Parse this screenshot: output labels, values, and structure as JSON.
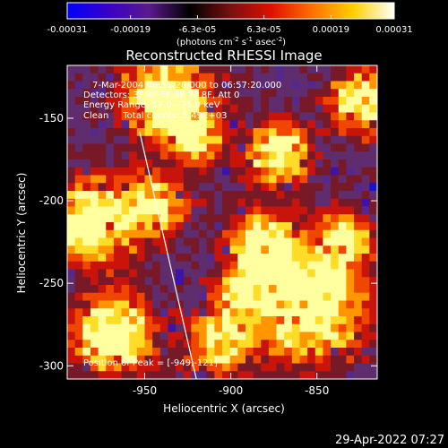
{
  "colorbar": {
    "tick_labels": [
      "-0.00031",
      "-0.00019",
      "-6.3e-05",
      "6.3e-05",
      "0.00019",
      "0.00031"
    ],
    "tick_values": [
      -0.00031,
      -0.00019,
      -6.3e-05,
      6.3e-05,
      0.00019,
      0.00031
    ],
    "range": [
      -0.00031,
      0.00031
    ],
    "units_label": "(photons cm",
    "units_exp1": "-2",
    "units_mid": " s",
    "units_exp2": "-1",
    "units_mid2": " asec",
    "units_exp3": "-2",
    "units_close": ")",
    "colors": [
      "#0000ff",
      "#3a00c8",
      "#5a1a8a",
      "#000000",
      "#7a1010",
      "#e01000",
      "#ff7000",
      "#ffd000",
      "#ffffff"
    ]
  },
  "title": "Reconstructed RHESSI Image",
  "annotations": {
    "time_range": "7-Mar-2004 06:51:20.000 to 06:57:20.000",
    "detectors": "Detectors: 3F 4F 5F 6F 7F 8F, Att 0",
    "energy_range": "Energy Range: 12.0 - 25.0 keV",
    "algorithm": "Clean     Total counts: 5.49E+03",
    "peak_position": "Position of Peak = [-949,-121]"
  },
  "axes": {
    "xlabel": "Heliocentric X (arcsec)",
    "ylabel": "Heliocentric Y (arcsec)",
    "xlim": [
      -995,
      -815
    ],
    "ylim": [
      -308,
      -118
    ],
    "x_ticks": [
      -950,
      -900,
      -850
    ],
    "x_tick_labels": [
      "-950",
      "-900",
      "-850"
    ],
    "y_ticks": [
      -150,
      -200,
      -250,
      -300
    ],
    "y_tick_labels": [
      "-150",
      "-200",
      "-250",
      "-300"
    ]
  },
  "limb_line": {
    "x": [
      -953,
      -920
    ],
    "y": [
      -158,
      -308
    ]
  },
  "timestamp": "29-Apr-2022 07:27"
}
